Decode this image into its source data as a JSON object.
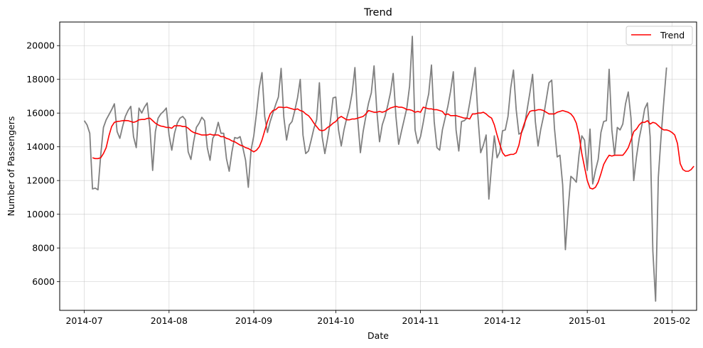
{
  "chart_data": {
    "type": "line",
    "title": "Trend",
    "xlabel": "Date",
    "ylabel": "Number of Passengers",
    "x_range": [
      "2014-06-22",
      "2015-02-10"
    ],
    "ylim": [
      4300,
      21400
    ],
    "x_ticks": [
      "2014-07-01",
      "2014-08-01",
      "2014-09-01",
      "2014-10-01",
      "2014-11-01",
      "2014-12-01",
      "2015-01-01",
      "2015-02-01"
    ],
    "x_tick_labels": [
      "2014-07",
      "2014-08",
      "2014-09",
      "2014-10",
      "2014-11",
      "2014-12",
      "2015-01",
      "2015-02"
    ],
    "y_ticks": [
      6000,
      8000,
      10000,
      12000,
      14000,
      16000,
      18000,
      20000
    ],
    "y_tick_labels": [
      "6000",
      "8000",
      "10000",
      "12000",
      "14000",
      "16000",
      "18000",
      "20000"
    ],
    "grid": true,
    "legend_position": "top-right",
    "series": [
      {
        "color": "#808080",
        "start_date": "2014-07-01",
        "values": [
          15550,
          15300,
          14800,
          11500,
          11550,
          11450,
          13500,
          15150,
          15600,
          15900,
          16200,
          16550,
          14900,
          14500,
          15200,
          15800,
          16150,
          16400,
          14600,
          13950,
          16300,
          16000,
          16350,
          16600,
          15100,
          12600,
          14900,
          15700,
          15950,
          16100,
          16300,
          14700,
          13800,
          14800,
          15400,
          15700,
          15800,
          15600,
          13700,
          13250,
          14300,
          15150,
          15400,
          15750,
          15550,
          13950,
          13200,
          14500,
          14800,
          15450,
          14800,
          14800,
          13300,
          12550,
          13700,
          14550,
          14500,
          14600,
          13950,
          13200,
          11600,
          13800,
          14650,
          16000,
          17500,
          18400,
          15800,
          14850,
          15500,
          16000,
          16500,
          16950,
          18650,
          15750,
          14400,
          15300,
          15500,
          16150,
          16900,
          18000,
          14700,
          13600,
          13750,
          14400,
          15100,
          15600,
          17800,
          14600,
          13600,
          14500,
          15500,
          16900,
          16950,
          15000,
          14050,
          15000,
          15700,
          16300,
          17200,
          18700,
          15700,
          13650,
          14900,
          15800,
          16600,
          17200,
          18800,
          16150,
          14300,
          15300,
          15800,
          16450,
          17200,
          18350,
          15800,
          14150,
          14900,
          15600,
          16300,
          17600,
          20550,
          15000,
          14200,
          14600,
          15450,
          16400,
          17150,
          18850,
          15500,
          13950,
          13800,
          15000,
          15700,
          16400,
          17300,
          18450,
          15000,
          13750,
          15500,
          15550,
          15700,
          16600,
          17600,
          18700,
          15800,
          13650,
          14100,
          14700,
          10900,
          12900,
          14650,
          13350,
          13700,
          14950,
          15000,
          15800,
          17500,
          18550,
          16200,
          14750,
          14850,
          15250,
          16200,
          17200,
          18300,
          15500,
          14050,
          15050,
          15800,
          16800,
          17800,
          17950,
          15100,
          13400,
          13500,
          11750,
          7900,
          10300,
          12250,
          12100,
          11900,
          13550,
          14650,
          14400,
          12600,
          15050,
          11800,
          12600,
          13250,
          14850,
          15500,
          15550,
          18600,
          15000,
          13500,
          15150,
          15000,
          15350,
          16550,
          17250,
          15700,
          12000,
          13400,
          14500,
          15300,
          16250,
          16600,
          14600,
          7800,
          4850,
          12200,
          14600,
          16700,
          18700
        ]
      },
      {
        "name": "Trend",
        "color": "#ff0000",
        "start_date": "2014-07-04",
        "values": [
          13350,
          13300,
          13300,
          13350,
          13600,
          13950,
          14650,
          15200,
          15450,
          15500,
          15520,
          15550,
          15560,
          15550,
          15500,
          15450,
          15500,
          15600,
          15620,
          15620,
          15680,
          15700,
          15550,
          15400,
          15300,
          15230,
          15200,
          15150,
          15150,
          15100,
          15250,
          15250,
          15250,
          15200,
          15200,
          15100,
          14950,
          14850,
          14800,
          14750,
          14700,
          14700,
          14700,
          14750,
          14700,
          14700,
          14700,
          14600,
          14600,
          14500,
          14450,
          14350,
          14300,
          14200,
          14100,
          14050,
          13950,
          13900,
          13800,
          13700,
          13800,
          14000,
          14400,
          14950,
          15500,
          15950,
          16150,
          16200,
          16350,
          16350,
          16320,
          16350,
          16300,
          16250,
          16200,
          16250,
          16150,
          16100,
          15950,
          15850,
          15650,
          15400,
          15200,
          15000,
          14950,
          15000,
          15150,
          15250,
          15400,
          15500,
          15700,
          15800,
          15700,
          15600,
          15600,
          15650,
          15650,
          15700,
          15750,
          15800,
          15950,
          16150,
          16100,
          16050,
          16050,
          16100,
          16050,
          16100,
          16200,
          16300,
          16350,
          16400,
          16350,
          16350,
          16300,
          16200,
          16200,
          16150,
          16050,
          16100,
          16050,
          16350,
          16300,
          16250,
          16250,
          16200,
          16200,
          16150,
          16100,
          15900,
          15950,
          15850,
          15850,
          15850,
          15800,
          15750,
          15700,
          15700,
          15650,
          15950,
          15950,
          16000,
          16000,
          16050,
          15950,
          15800,
          15700,
          15300,
          14700,
          14150,
          13650,
          13450,
          13500,
          13550,
          13550,
          13650,
          14100,
          14900,
          15400,
          15800,
          16100,
          16150,
          16150,
          16200,
          16200,
          16150,
          16050,
          15950,
          15950,
          15950,
          16050,
          16100,
          16150,
          16100,
          16050,
          15950,
          15750,
          15400,
          14700,
          13600,
          12800,
          12000,
          11550,
          11500,
          11600,
          11900,
          12400,
          12950,
          13250,
          13500,
          13450,
          13500,
          13500,
          13500,
          13500,
          13700,
          13950,
          14400,
          14900,
          15050,
          15300,
          15450,
          15450,
          15550,
          15350,
          15450,
          15400,
          15250,
          15100,
          15000,
          15000,
          14950,
          14850,
          14700,
          14200,
          13000,
          12650,
          12550,
          12550,
          12650,
          12850
        ]
      }
    ]
  }
}
